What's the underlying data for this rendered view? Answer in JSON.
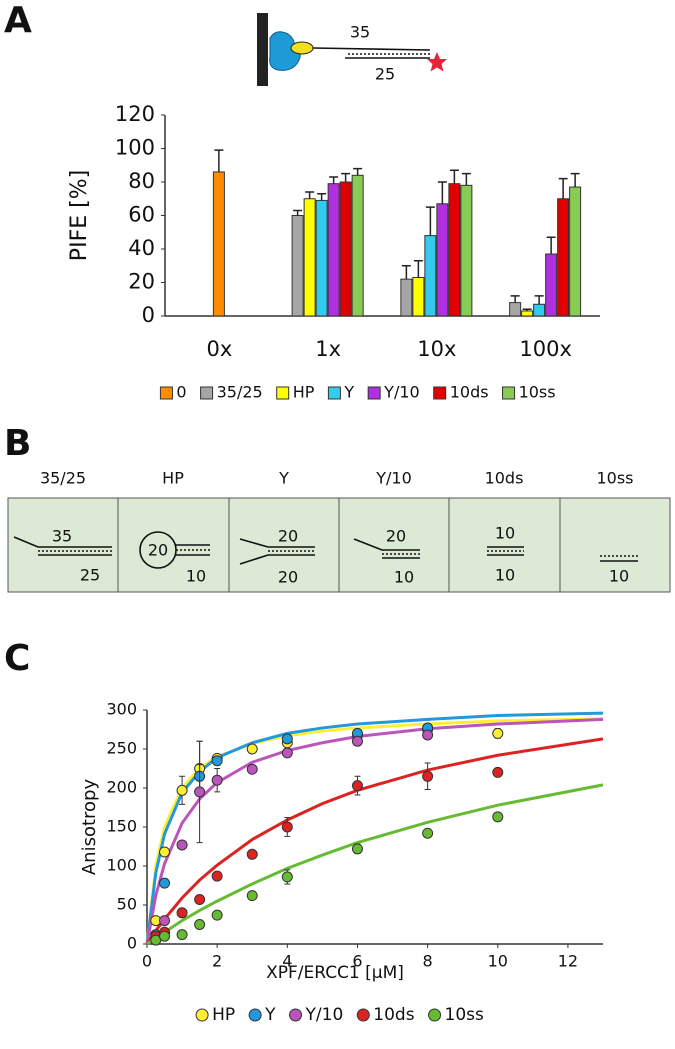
{
  "panel_labels": [
    "A",
    "B",
    "C"
  ],
  "schematic": {
    "top": "35",
    "bottom": "25"
  },
  "substrates": [
    {
      "name": "35/25",
      "labels": [
        "35",
        "25"
      ]
    },
    {
      "name": "HP",
      "labels": [
        "20",
        "10"
      ]
    },
    {
      "name": "Y",
      "labels": [
        "20",
        "20"
      ]
    },
    {
      "name": "Y/10",
      "labels": [
        "20",
        "10"
      ]
    },
    {
      "name": "10ds",
      "labels": [
        "10",
        "10"
      ]
    },
    {
      "name": "10ss",
      "labels": [
        "10"
      ]
    }
  ],
  "chart_data": [
    {
      "type": "bar",
      "ylabel": "PIFE [%]",
      "categories": [
        "0x",
        "1x",
        "10x",
        "100x"
      ],
      "ylim": [
        0,
        120
      ],
      "yticks": [
        0,
        20,
        40,
        60,
        80,
        100,
        120
      ],
      "series": [
        {
          "name": "0",
          "color": "#ff8c00",
          "values": [
            86,
            null,
            null,
            null
          ],
          "errors": [
            13,
            null,
            null,
            null
          ]
        },
        {
          "name": "35/25",
          "color": "#a6a6a6",
          "values": [
            null,
            60,
            22,
            8
          ],
          "errors": [
            null,
            3,
            8,
            4
          ]
        },
        {
          "name": "HP",
          "color": "#ffff00",
          "values": [
            null,
            70,
            23,
            3
          ],
          "errors": [
            null,
            4,
            10,
            1
          ]
        },
        {
          "name": "Y",
          "color": "#33ccee",
          "values": [
            null,
            69,
            48,
            7
          ],
          "errors": [
            null,
            4,
            17,
            5
          ]
        },
        {
          "name": "Y/10",
          "color": "#b030e0",
          "values": [
            null,
            79,
            67,
            37
          ],
          "errors": [
            null,
            4,
            13,
            10
          ]
        },
        {
          "name": "10ds",
          "color": "#e00000",
          "values": [
            null,
            80,
            79,
            70
          ],
          "errors": [
            null,
            5,
            8,
            12
          ]
        },
        {
          "name": "10ss",
          "color": "#88cc55",
          "values": [
            null,
            84,
            78,
            77
          ],
          "errors": [
            null,
            4,
            7,
            8
          ]
        }
      ]
    },
    {
      "type": "scatter",
      "xlabel": "XPF/ERCC1 [µM]",
      "ylabel": "Anisotropy",
      "xlim": [
        0,
        13
      ],
      "xticks": [
        0,
        2,
        4,
        6,
        8,
        10,
        12
      ],
      "ylim": [
        0,
        300
      ],
      "yticks": [
        0,
        50,
        100,
        150,
        200,
        250,
        300
      ],
      "fit_x": [
        0,
        0.25,
        0.5,
        1,
        1.5,
        2,
        3,
        4,
        5,
        6,
        8,
        10,
        13
      ],
      "series": [
        {
          "name": "HP",
          "color": "#ffee33",
          "x": [
            0.25,
            0.5,
            1,
            1.5,
            2,
            3,
            4,
            6,
            8,
            10
          ],
          "values": [
            30,
            118,
            197,
            225,
            238,
            250,
            258,
            268,
            275,
            270
          ],
          "errors": [
            3,
            4,
            18,
            35,
            5,
            5,
            5,
            6,
            5,
            6
          ],
          "fit": [
            0,
            100,
            150,
            200,
            225,
            240,
            257,
            267,
            273,
            277,
            282,
            286,
            289
          ]
        },
        {
          "name": "Y",
          "color": "#2299dd",
          "x": [
            0.25,
            0.5,
            1.5,
            2,
            4,
            6,
            8
          ],
          "values": [
            12,
            78,
            215,
            235,
            263,
            270,
            277
          ],
          "errors": [
            3,
            4,
            15,
            5,
            4,
            5,
            4
          ],
          "fit": [
            0,
            91,
            141,
            194,
            221,
            239,
            258,
            270,
            277,
            282,
            288,
            293,
            296
          ]
        },
        {
          "name": "Y/10",
          "color": "#bb55bb",
          "x": [
            0.25,
            0.5,
            1,
            1.5,
            2,
            3,
            4,
            6,
            8
          ],
          "values": [
            8,
            30,
            127,
            195,
            210,
            224,
            245,
            260,
            268
          ],
          "errors": [
            3,
            4,
            5,
            65,
            15,
            4,
            4,
            4,
            4
          ],
          "fit": [
            0,
            62,
            103,
            155,
            186,
            207,
            233,
            248,
            258,
            266,
            276,
            282,
            288
          ]
        },
        {
          "name": "10ds",
          "color": "#dd2222",
          "x": [
            0.25,
            0.5,
            1,
            1.5,
            2,
            3,
            4,
            6,
            8,
            10
          ],
          "values": [
            10,
            15,
            40,
            57,
            87,
            115,
            150,
            203,
            215,
            220
          ],
          "errors": [
            3,
            3,
            3,
            3,
            3,
            3,
            12,
            12,
            17,
            3
          ],
          "fit": [
            0,
            17,
            32,
            59,
            82,
            101,
            134,
            159,
            180,
            197,
            223,
            242,
            263
          ]
        },
        {
          "name": "10ss",
          "color": "#66bb33",
          "x": [
            0.25,
            0.5,
            1,
            1.5,
            2,
            3,
            4,
            6,
            8,
            10
          ],
          "values": [
            5,
            10,
            12,
            25,
            37,
            62,
            86,
            122,
            142,
            163
          ],
          "errors": [
            2,
            2,
            2,
            3,
            3,
            3,
            9,
            6,
            3,
            3
          ],
          "fit": [
            0,
            8,
            15,
            30,
            43,
            55,
            77,
            97,
            114,
            130,
            156,
            178,
            204
          ]
        }
      ]
    }
  ]
}
